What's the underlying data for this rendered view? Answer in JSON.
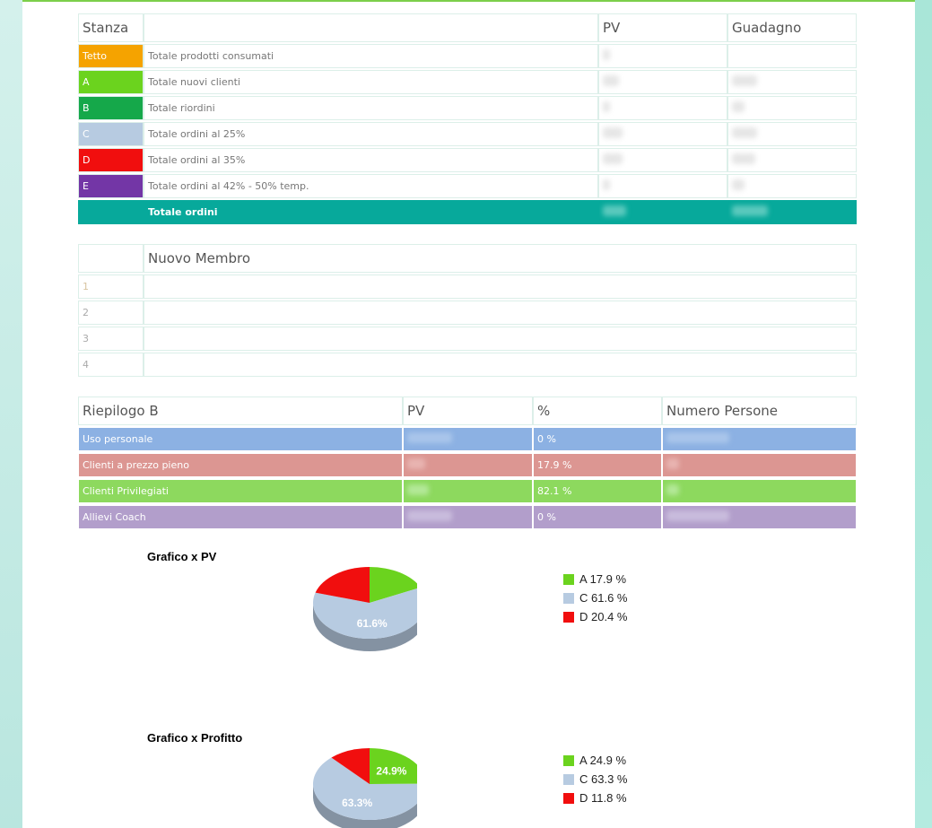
{
  "table_stanza": {
    "headers": {
      "stanza": "Stanza",
      "desc": "",
      "pv": "PV",
      "guadagno": "Guadagno"
    },
    "rows": [
      {
        "stanza": "Tetto",
        "label": "Totale prodotti consumati"
      },
      {
        "stanza": "A",
        "label": "Totale nuovi clienti"
      },
      {
        "stanza": "B",
        "label": "Totale riordini"
      },
      {
        "stanza": "C",
        "label": "Totale ordini al 25%"
      },
      {
        "stanza": "D",
        "label": "Totale ordini al 35%"
      },
      {
        "stanza": "E",
        "label": "Totale ordini al 42% - 50% temp."
      }
    ],
    "total_label": "Totale ordini"
  },
  "table_membri": {
    "header": "Nuovo Membro",
    "rows": [
      "1",
      "2",
      "3",
      "4"
    ]
  },
  "table_riepilogo": {
    "headers": {
      "title": "Riepilogo B",
      "pv": "PV",
      "pct": "%",
      "persone": "Numero Persone"
    },
    "rows": [
      {
        "label": "Uso personale",
        "pct": "0 %"
      },
      {
        "label": "Clienti a prezzo pieno",
        "pct": "17.9 %"
      },
      {
        "label": "Clienti Privilegiati",
        "pct": "82.1 %"
      },
      {
        "label": "Allievi Coach",
        "pct": "0 %"
      }
    ]
  },
  "colors": {
    "A": "#6bd31e",
    "C": "#b7cbe1",
    "D": "#f10e0e"
  },
  "chart_data": [
    {
      "type": "pie",
      "title": "Grafico x PV",
      "categories": [
        "A",
        "C",
        "D"
      ],
      "values": [
        17.9,
        61.6,
        20.4
      ],
      "legend": [
        "A 17.9 %",
        "C 61.6 %",
        "D 20.4 %"
      ],
      "slice_labels": [
        "",
        "61.6%",
        ""
      ]
    },
    {
      "type": "pie",
      "title": "Grafico x Profitto",
      "categories": [
        "A",
        "C",
        "D"
      ],
      "values": [
        24.9,
        63.3,
        11.8
      ],
      "legend": [
        "A 24.9 %",
        "C 63.3 %",
        "D 11.8 %"
      ],
      "slice_labels": [
        "24.9%",
        "63.3%",
        ""
      ]
    }
  ]
}
